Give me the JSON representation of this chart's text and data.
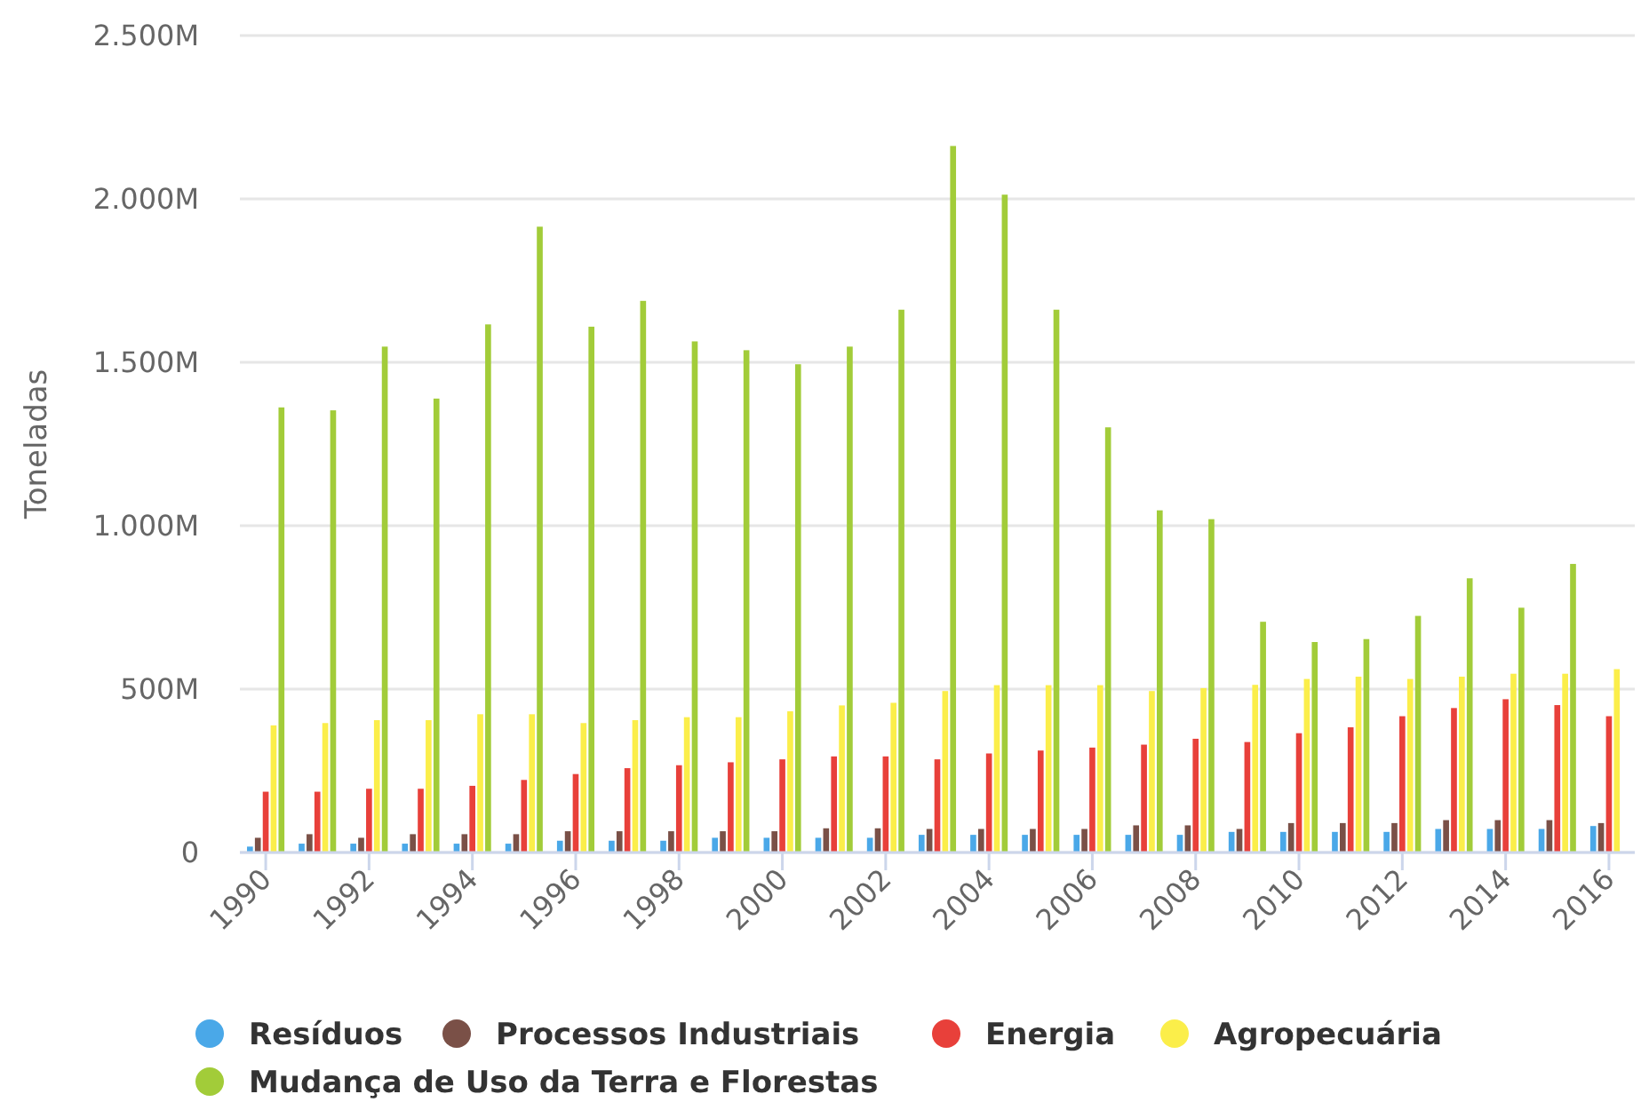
{
  "chart_data": {
    "type": "bar",
    "ylabel": "Toneladas",
    "categories": [
      "1990",
      null,
      "1992",
      null,
      "1994",
      null,
      "1996",
      null,
      "1998",
      null,
      "2000",
      null,
      "2002",
      null,
      "2004",
      null,
      "2006",
      null,
      "2008",
      null,
      "2010",
      null,
      "2012",
      null,
      "2014",
      null,
      "2016"
    ],
    "ylim": [
      0,
      2500
    ],
    "yticks": [
      {
        "value": 0,
        "label": "0"
      },
      {
        "value": 500,
        "label": "500M"
      },
      {
        "value": 1000,
        "label": "1.000M"
      },
      {
        "value": 1500,
        "label": "1.500M"
      },
      {
        "value": 2000,
        "label": "2.000M"
      },
      {
        "value": 2500,
        "label": "2.500M"
      }
    ],
    "grid": "y",
    "legend": "bottom",
    "series": [
      {
        "name": "Resíduos",
        "color": "#4aa8e8",
        "values": [
          18,
          27,
          27,
          27,
          27,
          27,
          36,
          36,
          36,
          45,
          45,
          45,
          45,
          54,
          54,
          54,
          54,
          54,
          54,
          63,
          63,
          63,
          63,
          72,
          72,
          72,
          81
        ]
      },
      {
        "name": "Processos Industriais",
        "color": "#7a5047",
        "values": [
          45,
          56,
          45,
          56,
          56,
          56,
          65,
          65,
          65,
          65,
          65,
          74,
          74,
          72,
          72,
          72,
          72,
          83,
          83,
          72,
          90,
          90,
          90,
          99,
          99,
          99,
          90
        ]
      },
      {
        "name": "Energia",
        "color": "#e8403a",
        "values": [
          186,
          186,
          195,
          195,
          204,
          222,
          240,
          258,
          267,
          276,
          285,
          294,
          294,
          285,
          303,
          312,
          321,
          330,
          348,
          338,
          365,
          383,
          417,
          442,
          469,
          451,
          417
        ]
      },
      {
        "name": "Agropecuária",
        "color": "#fbee4a",
        "values": [
          389,
          396,
          405,
          405,
          423,
          423,
          396,
          405,
          414,
          414,
          432,
          450,
          458,
          494,
          512,
          512,
          512,
          494,
          503,
          513,
          531,
          538,
          531,
          538,
          547,
          547,
          561
        ]
      },
      {
        "name": "Mudança de Uso da Terra e Florestas",
        "color": "#a2cc39",
        "values": [
          1362,
          1353,
          1548,
          1389,
          1616,
          1915,
          1609,
          1688,
          1564,
          1537,
          1494,
          1548,
          1661,
          2162,
          2013,
          1661,
          1301,
          1047,
          1020,
          706,
          644,
          653,
          724,
          839,
          749,
          883,
          null
        ]
      }
    ]
  }
}
